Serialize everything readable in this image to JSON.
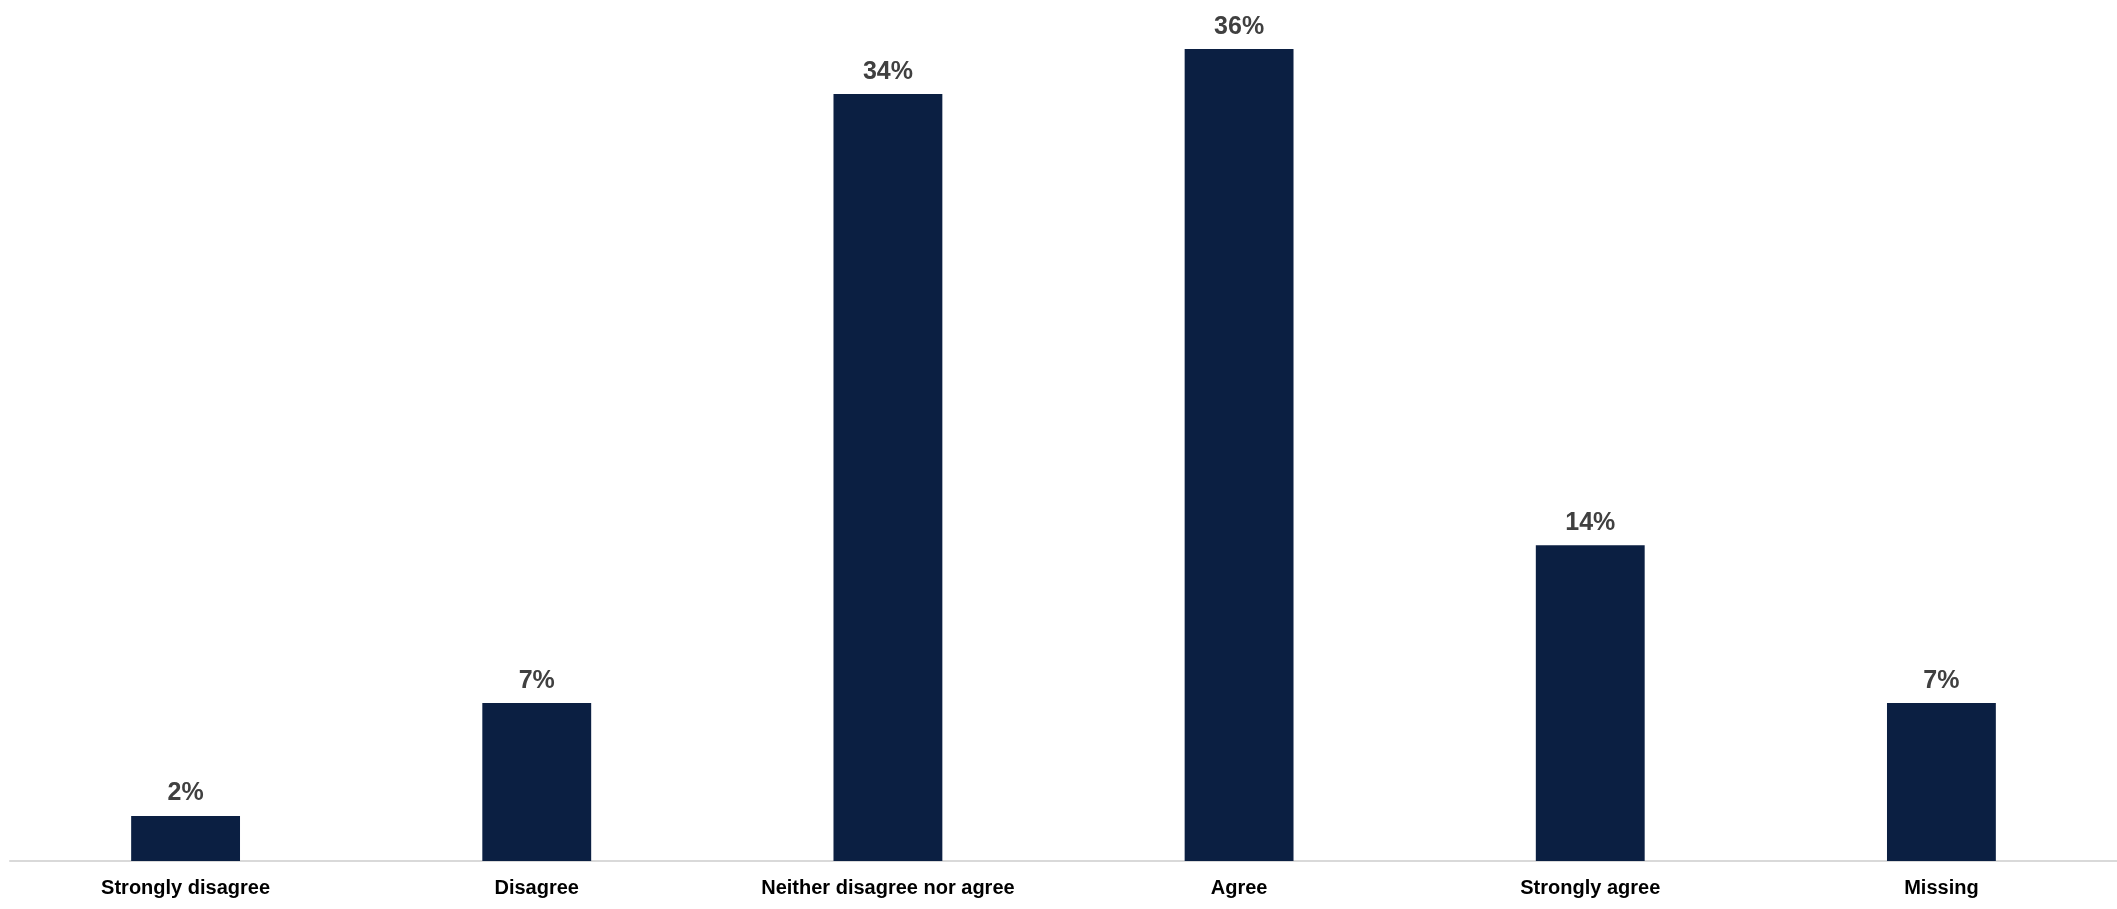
{
  "chart_data": {
    "type": "bar",
    "categories": [
      "Strongly disagree",
      "Disagree",
      "Neither disagree nor agree",
      "Agree",
      "Strongly agree",
      "Missing"
    ],
    "values": [
      2,
      7,
      34,
      36,
      14,
      7
    ],
    "value_labels": [
      "2%",
      "7%",
      "34%",
      "36%",
      "14%",
      "7%"
    ],
    "color": "#0b1f42"
  }
}
